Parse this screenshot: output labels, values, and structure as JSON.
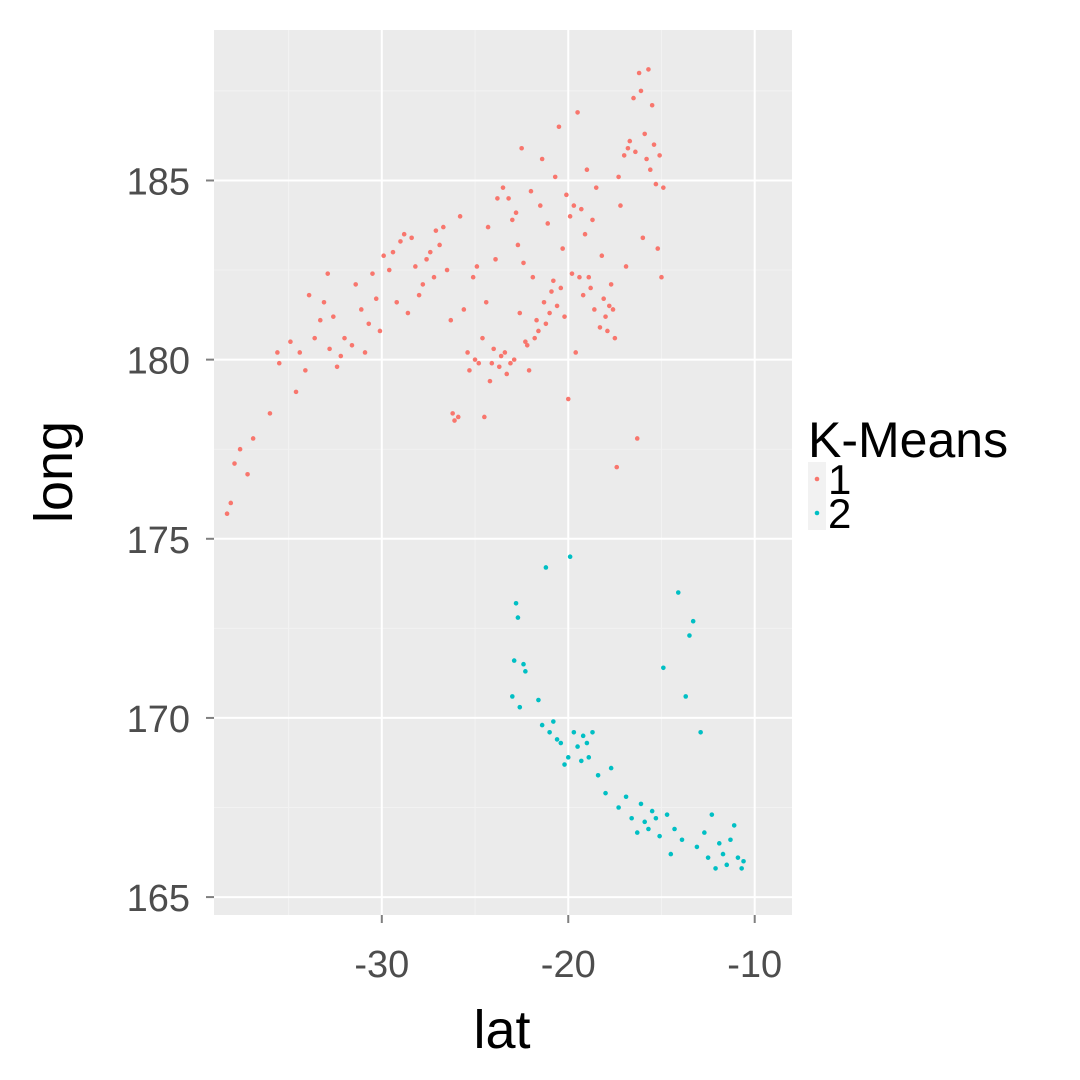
{
  "chart_data": {
    "type": "scatter",
    "xlabel": "lat",
    "ylabel": "long",
    "xlim": [
      -39,
      -8
    ],
    "ylim": [
      164.5,
      189.2
    ],
    "x_ticks": [
      -30,
      -20,
      -10
    ],
    "y_ticks": [
      165,
      170,
      175,
      180,
      185
    ],
    "grid": true,
    "legend": {
      "title": "K-Means",
      "position": "right"
    },
    "series": [
      {
        "name": "1",
        "color": "#F8766D",
        "points": [
          [
            -38.3,
            175.7
          ],
          [
            -38.1,
            176.0
          ],
          [
            -37.9,
            177.1
          ],
          [
            -37.6,
            177.5
          ],
          [
            -37.2,
            176.8
          ],
          [
            -36.9,
            177.8
          ],
          [
            -36.0,
            178.5
          ],
          [
            -35.6,
            180.2
          ],
          [
            -35.5,
            179.9
          ],
          [
            -34.9,
            180.5
          ],
          [
            -34.6,
            179.1
          ],
          [
            -34.4,
            180.2
          ],
          [
            -34.1,
            179.7
          ],
          [
            -33.9,
            181.8
          ],
          [
            -33.6,
            180.6
          ],
          [
            -33.3,
            181.1
          ],
          [
            -33.1,
            181.6
          ],
          [
            -32.9,
            182.4
          ],
          [
            -32.8,
            180.3
          ],
          [
            -32.6,
            181.2
          ],
          [
            -32.4,
            179.8
          ],
          [
            -32.2,
            180.1
          ],
          [
            -32.0,
            180.6
          ],
          [
            -31.6,
            180.4
          ],
          [
            -31.4,
            182.1
          ],
          [
            -31.1,
            181.4
          ],
          [
            -30.9,
            180.2
          ],
          [
            -30.7,
            181.0
          ],
          [
            -30.5,
            182.4
          ],
          [
            -30.3,
            181.7
          ],
          [
            -30.1,
            180.8
          ],
          [
            -29.9,
            182.9
          ],
          [
            -29.6,
            182.5
          ],
          [
            -29.4,
            183.0
          ],
          [
            -29.2,
            181.6
          ],
          [
            -29.0,
            183.3
          ],
          [
            -28.8,
            183.5
          ],
          [
            -28.6,
            181.3
          ],
          [
            -28.4,
            183.4
          ],
          [
            -28.2,
            182.6
          ],
          [
            -28.0,
            181.8
          ],
          [
            -27.8,
            182.1
          ],
          [
            -27.6,
            182.8
          ],
          [
            -27.4,
            183.0
          ],
          [
            -27.2,
            182.3
          ],
          [
            -27.1,
            183.6
          ],
          [
            -26.9,
            183.2
          ],
          [
            -26.7,
            183.7
          ],
          [
            -26.5,
            182.5
          ],
          [
            -26.3,
            181.1
          ],
          [
            -26.2,
            178.5
          ],
          [
            -26.1,
            178.3
          ],
          [
            -25.9,
            178.4
          ],
          [
            -25.8,
            184.0
          ],
          [
            -25.6,
            181.4
          ],
          [
            -25.4,
            180.2
          ],
          [
            -25.3,
            179.7
          ],
          [
            -25.1,
            182.3
          ],
          [
            -25.0,
            180.0
          ],
          [
            -24.9,
            182.6
          ],
          [
            -24.8,
            179.9
          ],
          [
            -24.6,
            180.6
          ],
          [
            -24.5,
            178.4
          ],
          [
            -24.4,
            181.6
          ],
          [
            -24.3,
            183.7
          ],
          [
            -24.2,
            179.4
          ],
          [
            -24.1,
            179.9
          ],
          [
            -24.0,
            180.3
          ],
          [
            -23.9,
            182.8
          ],
          [
            -23.8,
            184.5
          ],
          [
            -23.7,
            179.8
          ],
          [
            -23.6,
            180.1
          ],
          [
            -23.5,
            184.8
          ],
          [
            -23.4,
            180.2
          ],
          [
            -23.3,
            179.6
          ],
          [
            -23.2,
            184.5
          ],
          [
            -23.1,
            179.9
          ],
          [
            -23.0,
            183.9
          ],
          [
            -22.9,
            180.0
          ],
          [
            -22.8,
            184.1
          ],
          [
            -22.7,
            183.2
          ],
          [
            -22.6,
            181.3
          ],
          [
            -22.5,
            185.9
          ],
          [
            -22.4,
            182.7
          ],
          [
            -22.3,
            180.5
          ],
          [
            -22.2,
            180.4
          ],
          [
            -22.1,
            179.7
          ],
          [
            -22.0,
            184.7
          ],
          [
            -21.9,
            182.3
          ],
          [
            -21.8,
            180.6
          ],
          [
            -21.7,
            181.1
          ],
          [
            -21.6,
            180.8
          ],
          [
            -21.5,
            184.3
          ],
          [
            -21.4,
            185.6
          ],
          [
            -21.3,
            181.6
          ],
          [
            -21.2,
            181.0
          ],
          [
            -21.1,
            183.8
          ],
          [
            -21.0,
            181.3
          ],
          [
            -20.9,
            181.9
          ],
          [
            -20.8,
            182.2
          ],
          [
            -20.7,
            185.1
          ],
          [
            -20.6,
            181.5
          ],
          [
            -20.5,
            186.5
          ],
          [
            -20.4,
            182.0
          ],
          [
            -20.3,
            183.1
          ],
          [
            -20.2,
            181.2
          ],
          [
            -20.1,
            184.6
          ],
          [
            -20.0,
            178.9
          ],
          [
            -19.9,
            184.0
          ],
          [
            -19.8,
            182.4
          ],
          [
            -19.7,
            184.3
          ],
          [
            -19.6,
            180.2
          ],
          [
            -19.5,
            186.9
          ],
          [
            -19.4,
            182.3
          ],
          [
            -19.3,
            184.2
          ],
          [
            -19.2,
            181.8
          ],
          [
            -19.1,
            183.5
          ],
          [
            -19.0,
            185.3
          ],
          [
            -18.9,
            182.3
          ],
          [
            -18.8,
            182.0
          ],
          [
            -18.7,
            183.9
          ],
          [
            -18.6,
            181.4
          ],
          [
            -18.5,
            184.8
          ],
          [
            -18.3,
            180.9
          ],
          [
            -18.2,
            182.9
          ],
          [
            -18.1,
            181.7
          ],
          [
            -18.0,
            181.2
          ],
          [
            -17.9,
            180.8
          ],
          [
            -17.8,
            181.5
          ],
          [
            -17.7,
            182.1
          ],
          [
            -17.6,
            181.4
          ],
          [
            -17.5,
            180.6
          ],
          [
            -17.4,
            177.0
          ],
          [
            -17.3,
            185.1
          ],
          [
            -17.2,
            184.3
          ],
          [
            -17.0,
            185.7
          ],
          [
            -16.9,
            182.6
          ],
          [
            -16.8,
            185.9
          ],
          [
            -16.7,
            186.1
          ],
          [
            -16.5,
            187.3
          ],
          [
            -16.4,
            185.8
          ],
          [
            -16.3,
            177.8
          ],
          [
            -16.2,
            188.0
          ],
          [
            -16.1,
            187.5
          ],
          [
            -16.0,
            183.4
          ],
          [
            -15.9,
            186.3
          ],
          [
            -15.8,
            185.6
          ],
          [
            -15.7,
            188.1
          ],
          [
            -15.6,
            185.3
          ],
          [
            -15.5,
            187.1
          ],
          [
            -15.4,
            186.0
          ],
          [
            -15.3,
            184.9
          ],
          [
            -15.2,
            183.1
          ],
          [
            -15.1,
            185.7
          ],
          [
            -15.0,
            182.3
          ],
          [
            -14.9,
            184.8
          ]
        ]
      },
      {
        "name": "2",
        "color": "#00BFC4",
        "points": [
          [
            -23.0,
            170.6
          ],
          [
            -22.9,
            171.6
          ],
          [
            -22.8,
            173.2
          ],
          [
            -22.7,
            172.8
          ],
          [
            -22.6,
            170.3
          ],
          [
            -22.4,
            171.5
          ],
          [
            -22.3,
            171.3
          ],
          [
            -21.6,
            170.5
          ],
          [
            -21.4,
            169.8
          ],
          [
            -21.2,
            174.2
          ],
          [
            -21.0,
            169.6
          ],
          [
            -20.8,
            169.9
          ],
          [
            -20.6,
            169.4
          ],
          [
            -20.4,
            169.3
          ],
          [
            -20.2,
            168.7
          ],
          [
            -20.0,
            168.9
          ],
          [
            -19.9,
            174.5
          ],
          [
            -19.7,
            169.6
          ],
          [
            -19.5,
            169.2
          ],
          [
            -19.3,
            168.8
          ],
          [
            -19.2,
            169.5
          ],
          [
            -19.0,
            169.3
          ],
          [
            -18.9,
            168.9
          ],
          [
            -18.7,
            169.6
          ],
          [
            -18.4,
            168.4
          ],
          [
            -18.0,
            167.9
          ],
          [
            -17.7,
            168.6
          ],
          [
            -17.3,
            167.5
          ],
          [
            -16.9,
            167.8
          ],
          [
            -16.6,
            167.2
          ],
          [
            -16.3,
            166.8
          ],
          [
            -16.1,
            167.6
          ],
          [
            -15.9,
            167.1
          ],
          [
            -15.7,
            166.9
          ],
          [
            -15.5,
            167.4
          ],
          [
            -15.3,
            167.2
          ],
          [
            -15.1,
            166.7
          ],
          [
            -14.9,
            171.4
          ],
          [
            -14.7,
            167.3
          ],
          [
            -14.5,
            166.2
          ],
          [
            -14.3,
            166.9
          ],
          [
            -14.1,
            173.5
          ],
          [
            -13.9,
            166.6
          ],
          [
            -13.7,
            170.6
          ],
          [
            -13.5,
            172.3
          ],
          [
            -13.3,
            172.7
          ],
          [
            -13.1,
            166.4
          ],
          [
            -12.9,
            169.6
          ],
          [
            -12.7,
            166.8
          ],
          [
            -12.5,
            166.1
          ],
          [
            -12.3,
            167.3
          ],
          [
            -12.1,
            165.8
          ],
          [
            -11.9,
            166.5
          ],
          [
            -11.7,
            166.2
          ],
          [
            -11.5,
            165.9
          ],
          [
            -11.3,
            166.6
          ],
          [
            -11.1,
            167.0
          ],
          [
            -10.9,
            166.1
          ],
          [
            -10.7,
            165.8
          ],
          [
            -10.6,
            166.0
          ]
        ]
      }
    ]
  }
}
